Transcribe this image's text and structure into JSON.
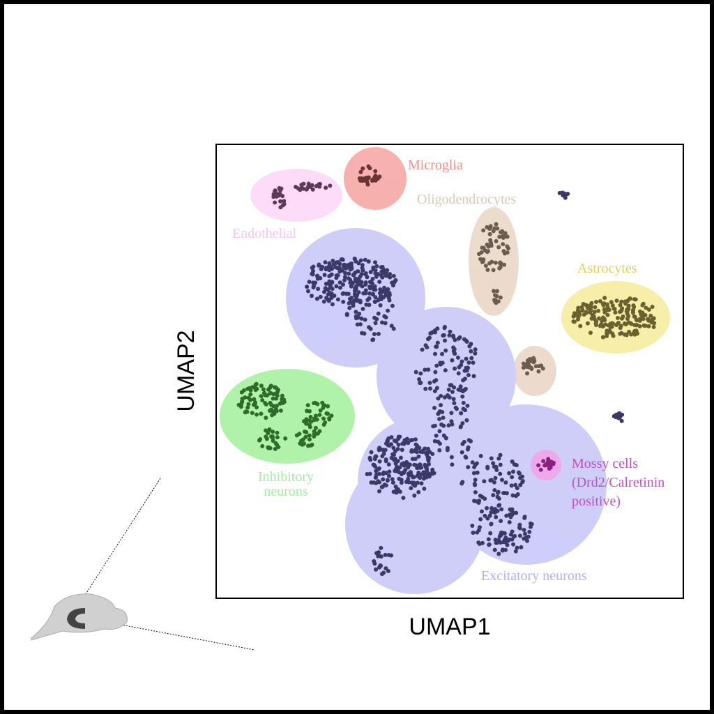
{
  "figure": {
    "x_axis_label": "UMAP1",
    "y_axis_label": "UMAP2",
    "clusters": [
      {
        "label": [
          "Microglia"
        ]
      },
      {
        "label": [
          "Endothelial"
        ]
      },
      {
        "label": [
          "Oligodendrocytes"
        ]
      },
      {
        "label": [
          "Astrocytes"
        ]
      },
      {
        "label": [
          "Inhibitory",
          "neurons"
        ]
      },
      {
        "label": [
          "Excitatory neurons"
        ]
      },
      {
        "label": [
          "Mossy cells",
          "(Drd2/Calretinin",
          "positive)"
        ]
      }
    ]
  }
}
